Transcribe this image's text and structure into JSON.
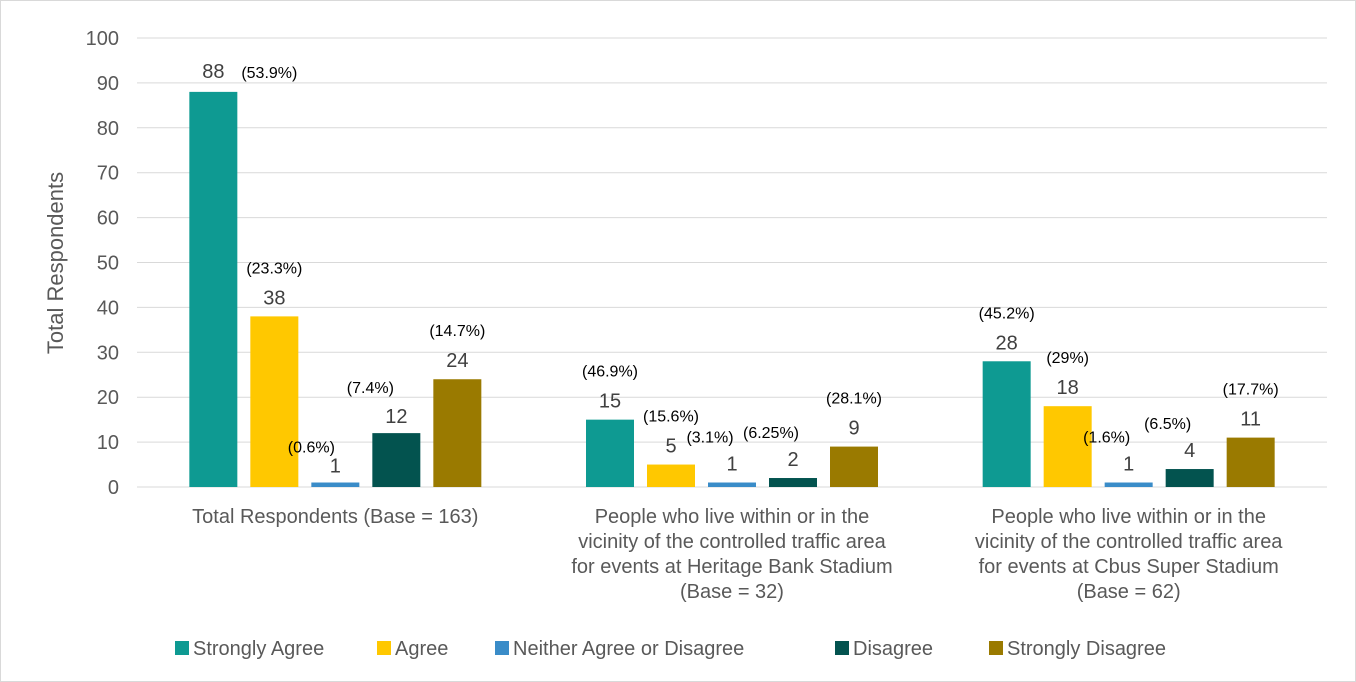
{
  "chart_data": {
    "type": "bar",
    "ylabel": "Total Respondents",
    "ylim": [
      0,
      100
    ],
    "yticks": [
      0,
      10,
      20,
      30,
      40,
      50,
      60,
      70,
      80,
      90,
      100
    ],
    "grid": true,
    "legend_position": "bottom",
    "categories": [
      [
        "Total Respondents (Base = 163)"
      ],
      [
        "People who live within or in the",
        "vicinity of the controlled traffic area",
        "for events at Heritage Bank Stadium",
        "(Base = 32)"
      ],
      [
        "People who live within or in the",
        "vicinity of the controlled traffic area",
        "for events at Cbus Super Stadium",
        "(Base = 62)"
      ]
    ],
    "series": [
      {
        "name": "Strongly Agree",
        "color": "#0e9a92",
        "values": [
          88,
          15,
          28
        ],
        "value_labels": [
          "88",
          "15",
          "28"
        ],
        "percent_labels": [
          "(53.9%)",
          "(46.9%)",
          "(45.2%)"
        ]
      },
      {
        "name": "Agree",
        "color": "#ffc800",
        "values": [
          38,
          5,
          18
        ],
        "value_labels": [
          "38",
          "5",
          "18"
        ],
        "percent_labels": [
          "(23.3%)",
          "(15.6%)",
          "(29%)"
        ]
      },
      {
        "name": "Neither Agree or Disagree",
        "color": "#3a8cc8",
        "values": [
          1,
          1,
          1
        ],
        "value_labels": [
          "1",
          "1",
          "1"
        ],
        "percent_labels": [
          "(0.6%)",
          "(3.1%)",
          "(1.6%)"
        ]
      },
      {
        "name": "Disagree",
        "color": "#03534f",
        "values": [
          12,
          2,
          4
        ],
        "value_labels": [
          "12",
          "2",
          "4"
        ],
        "percent_labels": [
          "(7.4%)",
          "(6.25%)",
          "(6.5%)"
        ]
      },
      {
        "name": "Strongly Disagree",
        "color": "#9a7a00",
        "values": [
          24,
          9,
          11
        ],
        "value_labels": [
          "24",
          "9",
          "11"
        ],
        "percent_labels": [
          "(14.7%)",
          "(28.1%)",
          "(17.7%)"
        ]
      }
    ]
  }
}
